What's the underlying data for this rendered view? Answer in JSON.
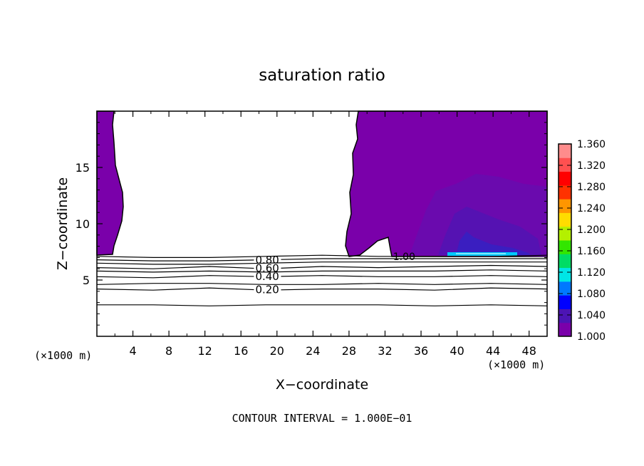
{
  "chart_data": {
    "type": "contour",
    "title": "saturation ratio",
    "xlabel": "X−coordinate",
    "ylabel": "Z−coordinate",
    "x_unit_left": "(×1000 m)",
    "x_unit_right": "(×1000 m)",
    "xlim": [
      0,
      50
    ],
    "ylim": [
      0,
      20
    ],
    "x_ticks": [
      4,
      8,
      12,
      16,
      20,
      24,
      28,
      32,
      36,
      40,
      44,
      48
    ],
    "y_ticks": [
      5,
      10,
      15
    ],
    "footer": "CONTOUR INTERVAL = 1.000E−01",
    "colorbar": {
      "min": 1.0,
      "max": 1.36,
      "ticks": [
        "1.360",
        "1.320",
        "1.280",
        "1.240",
        "1.200",
        "1.160",
        "1.120",
        "1.080",
        "1.040",
        "1.000"
      ],
      "colors": [
        "#7a00aa",
        "#4c14b4",
        "#0000ff",
        "#0078ff",
        "#00e6e6",
        "#00dc64",
        "#32e600",
        "#b4f000",
        "#ffdc00",
        "#ff9600",
        "#ff3200",
        "#ff0000",
        "#ff5050",
        "#ff8c8c"
      ]
    },
    "contour_lines": [
      {
        "level": 0.2,
        "label": "0.20",
        "label_x": 17.6,
        "z": [
          4.2,
          4.1,
          4.3,
          4.1,
          4.2,
          4.2,
          4.1,
          4.3,
          4.2
        ]
      },
      {
        "level": 0.4,
        "label": "0.40",
        "label_x": 17.6,
        "z": [
          5.3,
          5.2,
          5.4,
          5.3,
          5.4,
          5.3,
          5.3,
          5.4,
          5.3
        ]
      },
      {
        "level": 0.6,
        "label": "0.60",
        "label_x": 17.6,
        "z": [
          6.1,
          6.0,
          6.2,
          6.0,
          6.2,
          6.1,
          6.2,
          6.3,
          6.2
        ]
      },
      {
        "level": 0.8,
        "label": "0.80",
        "label_x": 17.6,
        "z": [
          6.8,
          6.7,
          6.7,
          6.8,
          6.9,
          6.9,
          6.9,
          6.9,
          6.9
        ]
      },
      {
        "level": 0.1,
        "z": [
          2.8,
          2.8,
          2.7,
          2.8,
          2.8,
          2.8,
          2.7,
          2.8,
          2.7
        ]
      },
      {
        "level": 0.3,
        "z": [
          4.6,
          4.7,
          4.7,
          4.6,
          4.6,
          4.7,
          4.6,
          4.7,
          4.6
        ]
      },
      {
        "level": 0.5,
        "z": [
          5.8,
          5.7,
          5.8,
          5.7,
          5.8,
          5.8,
          5.8,
          5.9,
          5.8
        ]
      },
      {
        "level": 0.7,
        "z": [
          6.5,
          6.4,
          6.4,
          6.5,
          6.6,
          6.6,
          6.6,
          6.6,
          6.6
        ]
      },
      {
        "level": 0.9,
        "z": [
          7.1,
          7.0,
          7.0,
          7.1,
          7.2,
          7.1,
          7.1,
          7.1,
          7.2
        ]
      }
    ],
    "supersat_label": {
      "label": "1.00",
      "x": 34,
      "z": 7.1
    }
  }
}
